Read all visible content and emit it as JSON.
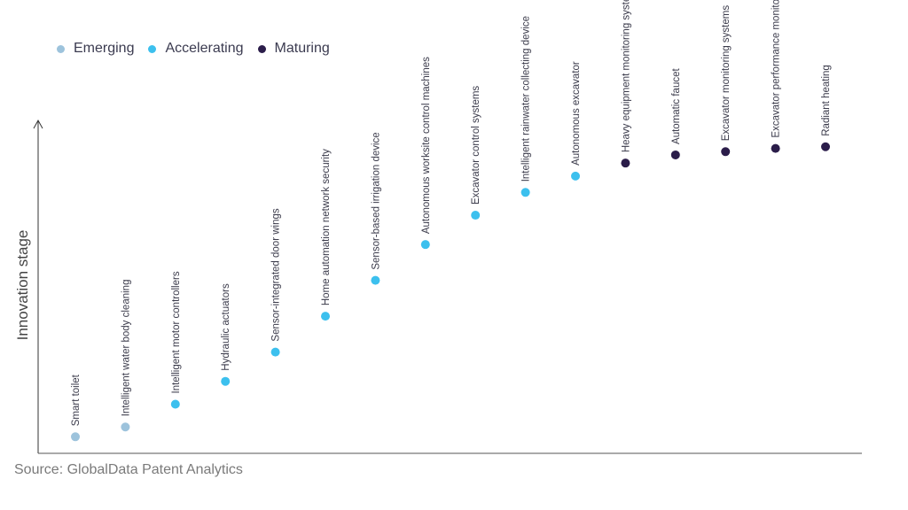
{
  "legend": {
    "emerging": {
      "label": "Emerging",
      "color": "#9dc3dc"
    },
    "accelerating": {
      "label": "Accelerating",
      "color": "#3cc0ee"
    },
    "maturing": {
      "label": "Maturing",
      "color": "#2b1d4a"
    }
  },
  "source": "Source: GlobalData Patent Analytics",
  "chart_data": {
    "type": "scatter",
    "ylabel": "Innovation stage",
    "xlabel": "",
    "ylim": [
      0,
      100
    ],
    "grid": false,
    "legend_position": "top-left",
    "points": [
      {
        "label": "Smart toilet",
        "y": 4,
        "stage": "emerging"
      },
      {
        "label": "Intelligent water body cleaning",
        "y": 7,
        "stage": "emerging"
      },
      {
        "label": "Intelligent motor controllers",
        "y": 14,
        "stage": "accelerating"
      },
      {
        "label": "Hydraulic actuators",
        "y": 21,
        "stage": "accelerating"
      },
      {
        "label": "Sensor-integrated door wings",
        "y": 30,
        "stage": "accelerating"
      },
      {
        "label": "Home automation network security",
        "y": 41,
        "stage": "accelerating"
      },
      {
        "label": "Sensor-based irrigation device",
        "y": 52,
        "stage": "accelerating"
      },
      {
        "label": "Autonomous worksite control machines",
        "y": 63,
        "stage": "accelerating"
      },
      {
        "label": "Excavator control systems",
        "y": 72,
        "stage": "accelerating"
      },
      {
        "label": "Intelligent rainwater collecting device",
        "y": 79,
        "stage": "accelerating"
      },
      {
        "label": "Autonomous excavator",
        "y": 84,
        "stage": "accelerating"
      },
      {
        "label": "Heavy equipment monitoring systems",
        "y": 88,
        "stage": "maturing"
      },
      {
        "label": "Automatic faucet",
        "y": 90.5,
        "stage": "maturing"
      },
      {
        "label": "Excavator monitoring systems",
        "y": 91.5,
        "stage": "maturing"
      },
      {
        "label": "Excavator performance monitor",
        "y": 92.5,
        "stage": "maturing"
      },
      {
        "label": "Radiant heating",
        "y": 93,
        "stage": "maturing"
      }
    ]
  }
}
